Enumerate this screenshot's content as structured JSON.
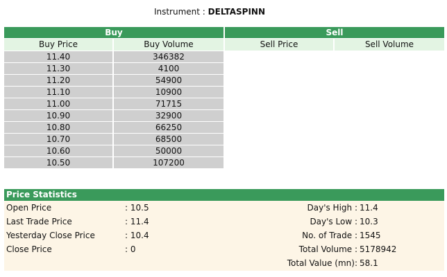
{
  "instrument": {
    "label": "Instrument :",
    "name": "DELTASPINN"
  },
  "buy": {
    "title": "Buy",
    "col_price": "Buy Price",
    "col_volume": "Buy Volume",
    "rows": [
      {
        "price": "11.40",
        "volume": "346382"
      },
      {
        "price": "11.30",
        "volume": "4100"
      },
      {
        "price": "11.20",
        "volume": "54900"
      },
      {
        "price": "11.10",
        "volume": "10900"
      },
      {
        "price": "11.00",
        "volume": "71715"
      },
      {
        "price": "10.90",
        "volume": "32900"
      },
      {
        "price": "10.80",
        "volume": "66250"
      },
      {
        "price": "10.70",
        "volume": "68500"
      },
      {
        "price": "10.60",
        "volume": "50000"
      },
      {
        "price": "10.50",
        "volume": "107200"
      }
    ]
  },
  "sell": {
    "title": "Sell",
    "col_price": "Sell Price",
    "col_volume": "Sell Volume",
    "rows": []
  },
  "stats": {
    "title": "Price Statistics",
    "left": [
      {
        "label": "Open Price",
        "value": ": 10.5"
      },
      {
        "label": "Last Trade Price",
        "value": ": 11.4"
      },
      {
        "label": "Yesterday Close Price",
        "value": ": 10.4"
      },
      {
        "label": "Close Price",
        "value": ": 0"
      }
    ],
    "right": [
      {
        "label": "Day's High :",
        "value": "11.4"
      },
      {
        "label": "Day's Low :",
        "value": "10.3"
      },
      {
        "label": "No. of Trade :",
        "value": "1545"
      },
      {
        "label": "Total Volume :",
        "value": "5178942"
      },
      {
        "label": "Total Value (mn):",
        "value": "58.1"
      }
    ]
  },
  "colors": {
    "header_green": "#3a9a5b",
    "column_header_bg": "#e3f4e3",
    "row_bg": "#cfcfcf",
    "stats_bg": "#fdf5e6"
  }
}
